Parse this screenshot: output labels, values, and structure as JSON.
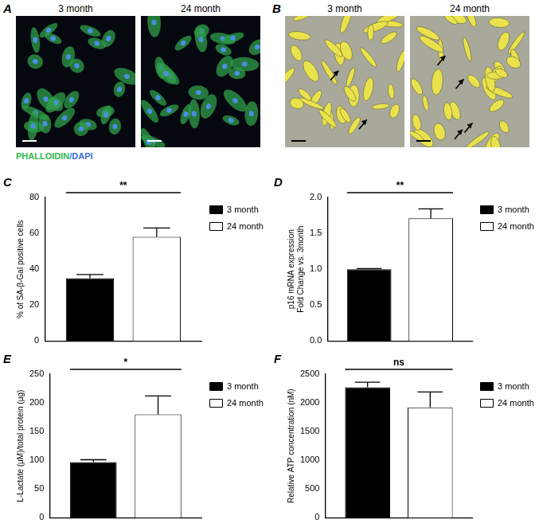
{
  "image_panels": [
    {
      "panel": "A",
      "images": [
        {
          "title": "3 month"
        },
        {
          "title": "24 month"
        }
      ],
      "stain_labels": [
        {
          "text": "PHALLOIDIN",
          "color": "#2fb84a"
        },
        {
          "text": "/DAPI",
          "color": "#3a6fd8"
        }
      ]
    },
    {
      "panel": "B",
      "images": [
        {
          "title": "3 month"
        },
        {
          "title": "24 month"
        }
      ]
    }
  ],
  "chart_data": [
    {
      "panel": "C",
      "type": "bar",
      "categories": [
        null
      ],
      "series": [
        {
          "name": "3 month",
          "color": "#000000",
          "values": [
            35
          ],
          "errors": [
            2
          ]
        },
        {
          "name": "24 month",
          "color": "#ffffff",
          "values": [
            58
          ],
          "errors": [
            5
          ]
        }
      ],
      "y_label": "% of SA-β-Gal positive cells",
      "ylim": [
        0,
        80
      ],
      "yticks": [
        0,
        20,
        40,
        60,
        80
      ],
      "annotation": "**",
      "grid": false,
      "legend": "upper right",
      "tick_labels": "y"
    },
    {
      "panel": "D",
      "type": "bar",
      "categories": [
        null
      ],
      "series": [
        {
          "name": "3 month",
          "color": "#000000",
          "values": [
            1.0
          ],
          "errors": [
            0.01
          ]
        },
        {
          "name": "24 month",
          "color": "#ffffff",
          "values": [
            1.71
          ],
          "errors": [
            0.13
          ]
        }
      ],
      "y_label": [
        "p16 mRNA expression",
        "Fold Change vs. 3month"
      ],
      "ylim": [
        0,
        2
      ],
      "yticks": [
        {
          "value": 0,
          "label": "0.0"
        },
        {
          "value": 0.5,
          "label": "0.5"
        },
        {
          "value": 1,
          "label": "1.0"
        },
        {
          "value": 1.5,
          "label": "1.5"
        },
        {
          "value": 2,
          "label": "2.0"
        }
      ],
      "annotation": "**",
      "grid": false,
      "legend": "upper right",
      "tick_labels": "y"
    },
    {
      "panel": "E",
      "type": "bar",
      "categories": [
        null
      ],
      "series": [
        {
          "name": "3 month",
          "color": "#000000",
          "values": [
            97
          ],
          "errors": [
            4
          ]
        },
        {
          "name": "24 month",
          "color": "#ffffff",
          "values": [
            180
          ],
          "errors": [
            32
          ]
        }
      ],
      "y_label": "L-Lactate (µM)/total protein (µg)",
      "ylim": [
        0,
        250
      ],
      "yticks": [
        0,
        50,
        100,
        150,
        200,
        250
      ],
      "annotation": "*",
      "grid": false,
      "legend": "upper right",
      "tick_labels": "y"
    },
    {
      "panel": "F",
      "type": "bar",
      "categories": [
        null
      ],
      "series": [
        {
          "name": "3 month",
          "color": "#000000",
          "values": [
            2270
          ],
          "errors": [
            90
          ]
        },
        {
          "name": "24 month",
          "color": "#ffffff",
          "values": [
            1920
          ],
          "errors": [
            270
          ]
        }
      ],
      "y_label": "Relative ATP concentration (nM)",
      "ylim": [
        0,
        2500
      ],
      "yticks": [
        0,
        500,
        1000,
        1500,
        2000,
        2500
      ],
      "annotation": "ns",
      "grid": false,
      "legend": "upper right",
      "tick_labels": "y"
    }
  ]
}
